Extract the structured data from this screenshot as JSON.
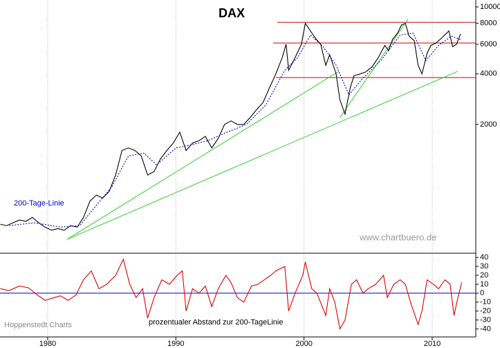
{
  "chart_data": [
    {
      "type": "line",
      "title": "DAX",
      "log_scale": true,
      "grid": true,
      "xlim": [
        1976.28,
        2013.4
      ],
      "xticks": [
        1980,
        1990,
        2000,
        2010
      ],
      "ylim": [
        346,
        10790
      ],
      "yticks": [
        2000,
        4000,
        6000,
        8000,
        10000
      ],
      "annotations": [
        "www.chartbuero.de"
      ],
      "series": [
        {
          "color": "#000000",
          "x": [
            1976.3,
            1976.8,
            1977.3,
            1977.8,
            1978.3,
            1978.8,
            1979.3,
            1979.8,
            1980.3,
            1980.8,
            1981.3,
            1981.8,
            1982.3,
            1982.8,
            1983.3,
            1983.8,
            1984.3,
            1984.8,
            1985.3,
            1985.8,
            1986.3,
            1986.8,
            1987.3,
            1987.8,
            1988.3,
            1988.8,
            1989.3,
            1989.8,
            1990.3,
            1990.8,
            1991.3,
            1991.8,
            1992.3,
            1992.8,
            1993.3,
            1993.8,
            1994.3,
            1994.8,
            1995.3,
            1995.8,
            1996.3,
            1996.8,
            1997.3,
            1997.8,
            1998.3,
            1998.6,
            1998.8,
            1999.3,
            1999.8,
            2000.1,
            2000.5,
            2000.9,
            2001.3,
            2001.7,
            2002.0,
            2002.5,
            2002.8,
            2003.2,
            2003.6,
            2003.9,
            2004.4,
            2004.8,
            2005.3,
            2005.8,
            2006.3,
            2006.6,
            2006.9,
            2007.3,
            2007.6,
            2007.9,
            2008.2,
            2008.6,
            2008.9,
            2009.2,
            2009.6,
            2009.9,
            2010.3,
            2010.8,
            2011.3,
            2011.6,
            2011.9,
            2012.2
          ],
          "values": [
            510,
            500,
            520,
            540,
            530,
            560,
            520,
            490,
            470,
            480,
            470,
            500,
            490,
            560,
            700,
            760,
            730,
            800,
            1000,
            1400,
            1450,
            1400,
            1300,
            1000,
            1050,
            1250,
            1400,
            1550,
            1800,
            1400,
            1550,
            1600,
            1700,
            1450,
            1650,
            2000,
            2100,
            2000,
            2000,
            2200,
            2450,
            2700,
            3300,
            4000,
            5000,
            6000,
            4200,
            5000,
            6000,
            8000,
            7200,
            6500,
            6000,
            4500,
            5200,
            4000,
            2800,
            2300,
            3300,
            3900,
            4000,
            4100,
            4400,
            5000,
            5900,
            5500,
            6400,
            7000,
            7800,
            8000,
            6700,
            6300,
            4500,
            4000,
            5300,
            5900,
            6100,
            6600,
            7200,
            5800,
            6000,
            6900
          ]
        },
        {
          "name": "200-Tage-Linie",
          "color": "#0000cc",
          "dashed": true,
          "x": [
            1977.0,
            1979.0,
            1981.0,
            1982.5,
            1983.5,
            1985.0,
            1986.3,
            1987.5,
            1988.5,
            1990.0,
            1991.0,
            1992.5,
            1994.0,
            1995.5,
            1997.0,
            1998.5,
            1999.5,
            2000.5,
            2001.5,
            2002.5,
            2003.5,
            2004.5,
            2006.0,
            2007.5,
            2008.5,
            2009.5,
            2010.5,
            2011.5,
            2012.2
          ],
          "values": [
            500,
            520,
            490,
            500,
            620,
            850,
            1300,
            1350,
            1150,
            1450,
            1500,
            1600,
            1800,
            2000,
            2600,
            4200,
            5000,
            6800,
            5800,
            4500,
            3000,
            3700,
            4800,
            6800,
            7000,
            4800,
            5900,
            6700,
            6400
          ]
        }
      ],
      "levels": [
        {
          "value": 8100,
          "from": 1997.9
        },
        {
          "value": 6100,
          "from": 1997.6
        },
        {
          "value": 3800,
          "from": 1997.8
        }
      ],
      "level_color": "#cc0000",
      "trendlines": [
        {
          "x": [
            1981.5,
            2002.7
          ],
          "values": [
            414,
            4130
          ]
        },
        {
          "x": [
            1981.5,
            2012.0
          ],
          "values": [
            414,
            4140
          ]
        },
        {
          "x": [
            2002.8,
            2008.1
          ],
          "values": [
            2200,
            8430
          ]
        }
      ],
      "trend_color": "#33cc33"
    },
    {
      "type": "line",
      "grid": true,
      "xlim": [
        1976.28,
        2013.4
      ],
      "xticks": [
        1980,
        1990,
        2000,
        2010
      ],
      "ylim": [
        -49,
        44
      ],
      "yticks": [
        40,
        30,
        20,
        10,
        0,
        -10,
        -20,
        -30,
        -40
      ],
      "zero_color": "#0000cc",
      "annotations": [
        "Hoppenstedt Charts",
        "prozentualer Abstand zur 200-TageLinie"
      ],
      "series": [
        {
          "color": "#dd0000",
          "x": [
            1976.3,
            1977,
            1977.8,
            1978.5,
            1979.2,
            1979.8,
            1980.5,
            1981,
            1981.6,
            1982.2,
            1982.8,
            1983.4,
            1984,
            1984.6,
            1985.3,
            1985.9,
            1986.4,
            1986.9,
            1987.4,
            1987.8,
            1988.3,
            1988.9,
            1989.5,
            1990.1,
            1990.5,
            1990.8,
            1991.3,
            1991.8,
            1992.3,
            1992.8,
            1993.3,
            1993.9,
            1994.3,
            1994.8,
            1995.3,
            1995.9,
            1996.4,
            1996.9,
            1997.4,
            1997.8,
            1998.5,
            1998.8,
            1999.3,
            1999.9,
            2000.1,
            2000.6,
            2001.0,
            2001.7,
            2002.0,
            2002.4,
            2002.8,
            2003.2,
            2003.7,
            2004.1,
            2004.6,
            2005.0,
            2005.6,
            2006.2,
            2006.5,
            2007.0,
            2007.5,
            2007.9,
            2008.3,
            2008.9,
            2009.2,
            2009.6,
            2010.1,
            2010.5,
            2011.0,
            2011.4,
            2011.7,
            2012.0,
            2012.3
          ],
          "values": [
            5,
            3,
            8,
            6,
            -2,
            -8,
            -5,
            -3,
            -8,
            -2,
            15,
            25,
            5,
            10,
            20,
            38,
            10,
            -5,
            5,
            -28,
            -5,
            15,
            10,
            20,
            25,
            -20,
            5,
            0,
            8,
            -15,
            5,
            20,
            12,
            -5,
            -10,
            8,
            10,
            15,
            20,
            25,
            30,
            -20,
            0,
            20,
            35,
            5,
            0,
            -25,
            5,
            -10,
            -40,
            -30,
            10,
            15,
            0,
            5,
            10,
            20,
            -5,
            10,
            15,
            10,
            -10,
            -35,
            -20,
            15,
            10,
            5,
            15,
            10,
            -25,
            -5,
            12
          ]
        }
      ]
    }
  ]
}
